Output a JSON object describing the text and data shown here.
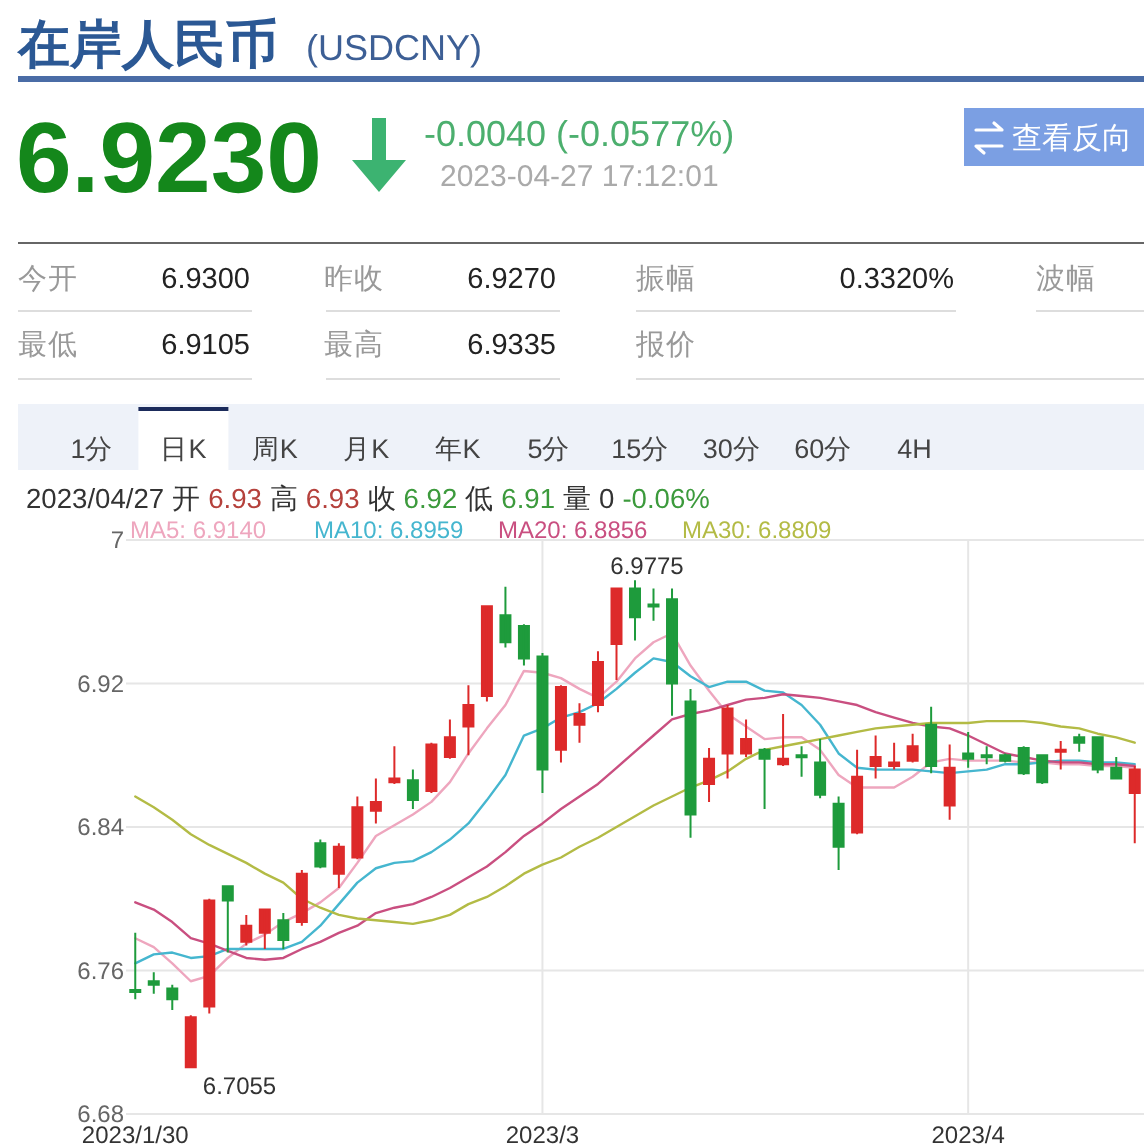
{
  "chart_data": [
    {
      "type": "other",
      "title": "在岸人民币",
      "subtitle": "(USDCNY)",
      "annotations": [
        "6.9230",
        "-0.0040 (-0.0577%)",
        "2023-04-27 17:12:01",
        "查看反向",
        "今开",
        "6.9300",
        "昨收",
        "6.9270",
        "振幅",
        "0.3320%",
        "波幅",
        "最低",
        "6.9105",
        "最高",
        "6.9335",
        "报价",
        "1分",
        "日K",
        "周K",
        "月K",
        "年K",
        "5分",
        "15分",
        "30分",
        "60分",
        "4H",
        "2023/04/27",
        "开",
        "6.93",
        "高",
        "6.93",
        "收",
        "6.92",
        "低",
        "6.91",
        "量",
        "0",
        "-0.06%"
      ]
    },
    {
      "type": "candlestick",
      "categories": [
        "2023/1/30",
        null,
        null,
        null,
        null,
        null,
        null,
        null,
        null,
        null,
        null,
        null,
        null,
        null,
        null,
        null,
        null,
        null,
        null,
        null,
        null,
        null,
        "2023/3",
        null,
        null,
        null,
        null,
        null,
        null,
        null,
        null,
        null,
        null,
        null,
        null,
        null,
        null,
        null,
        null,
        null,
        null,
        null,
        null,
        null,
        null,
        "2023/4",
        null,
        null,
        null,
        null,
        null,
        null,
        null,
        null,
        null
      ],
      "ohlc": [
        [
          6.749,
          6.781,
          6.744,
          6.748
        ],
        [
          6.754,
          6.759,
          6.747,
          6.752
        ],
        [
          6.75,
          6.752,
          6.738,
          6.744
        ],
        [
          6.706,
          6.735,
          6.7055,
          6.734
        ],
        [
          6.74,
          6.8,
          6.736,
          6.799
        ],
        [
          6.807,
          6.807,
          6.77,
          6.799
        ],
        [
          6.776,
          6.791,
          6.774,
          6.785
        ],
        [
          6.781,
          6.794,
          6.772,
          6.794
        ],
        [
          6.788,
          6.792,
          6.772,
          6.777
        ],
        [
          6.787,
          6.816,
          6.785,
          6.814
        ],
        [
          6.831,
          6.833,
          6.817,
          6.818
        ],
        [
          6.814,
          6.831,
          6.806,
          6.829
        ],
        [
          6.823,
          6.857,
          6.822,
          6.851
        ],
        [
          6.849,
          6.867,
          6.842,
          6.854
        ],
        [
          6.865,
          6.885,
          6.864,
          6.867
        ],
        [
          6.866,
          6.872,
          6.85,
          6.855
        ],
        [
          6.86,
          6.887,
          6.859,
          6.886
        ],
        [
          6.879,
          6.9,
          6.878,
          6.89
        ],
        [
          6.896,
          6.919,
          6.88,
          6.908
        ],
        [
          6.913,
          6.963,
          6.91,
          6.963
        ],
        [
          6.958,
          6.974,
          6.94,
          6.943
        ],
        [
          6.952,
          6.953,
          6.93,
          6.934
        ],
        [
          6.935,
          6.937,
          6.859,
          6.872
        ],
        [
          6.883,
          6.919,
          6.876,
          6.918
        ],
        [
          6.897,
          6.909,
          6.887,
          6.903
        ],
        [
          6.908,
          6.938,
          6.904,
          6.932
        ],
        [
          6.942,
          6.973,
          6.922,
          6.973
        ],
        [
          6.973,
          6.9775,
          6.944,
          6.957
        ],
        [
          6.964,
          6.973,
          6.955,
          6.963
        ],
        [
          6.967,
          6.973,
          6.902,
          6.92
        ],
        [
          6.91,
          6.917,
          6.834,
          6.847
        ],
        [
          6.864,
          6.884,
          6.854,
          6.878
        ],
        [
          6.881,
          6.908,
          6.867,
          6.906
        ],
        [
          6.881,
          6.9,
          6.879,
          6.889
        ],
        [
          6.883,
          6.884,
          6.85,
          6.878
        ],
        [
          6.875,
          6.903,
          6.874,
          6.878
        ],
        [
          6.88,
          6.885,
          6.868,
          6.879
        ],
        [
          6.876,
          6.889,
          6.856,
          6.858
        ],
        [
          6.853,
          6.857,
          6.816,
          6.829
        ],
        [
          6.837,
          6.883,
          6.836,
          6.868
        ],
        [
          6.874,
          6.891,
          6.867,
          6.879
        ],
        [
          6.874,
          6.887,
          6.872,
          6.876
        ],
        [
          6.877,
          6.892,
          6.876,
          6.885
        ],
        [
          6.897,
          6.907,
          6.87,
          6.874
        ],
        [
          6.852,
          6.886,
          6.844,
          6.873
        ],
        [
          6.881,
          6.893,
          6.873,
          6.878
        ],
        [
          6.88,
          6.885,
          6.875,
          6.879
        ],
        [
          6.88,
          6.881,
          6.876,
          6.877
        ],
        [
          6.884,
          6.885,
          6.869,
          6.87
        ],
        [
          6.88,
          6.88,
          6.864,
          6.865
        ],
        [
          6.882,
          6.888,
          6.872,
          6.883
        ],
        [
          6.89,
          6.892,
          6.882,
          6.887
        ],
        [
          6.89,
          6.89,
          6.87,
          6.872
        ],
        [
          6.873,
          6.879,
          6.867,
          6.867
        ],
        [
          6.859,
          6.874,
          6.831,
          6.872
        ]
      ],
      "colors": [
        "#1e9b3c",
        "#1e9b3c",
        "#1e9b3c",
        "#dd2a2a",
        "#dd2a2a",
        "#1e9b3c",
        "#dd2a2a",
        "#dd2a2a",
        "#1e9b3c",
        "#dd2a2a",
        "#1e9b3c",
        "#dd2a2a",
        "#dd2a2a",
        "#dd2a2a",
        "#dd2a2a",
        "#1e9b3c",
        "#dd2a2a",
        "#dd2a2a",
        "#dd2a2a",
        "#dd2a2a",
        "#1e9b3c",
        "#1e9b3c",
        "#1e9b3c",
        "#dd2a2a",
        "#dd2a2a",
        "#dd2a2a",
        "#dd2a2a",
        "#1e9b3c",
        "#1e9b3c",
        "#1e9b3c",
        "#1e9b3c",
        "#dd2a2a",
        "#dd2a2a",
        "#dd2a2a",
        "#1e9b3c",
        "#dd2a2a",
        "#1e9b3c",
        "#1e9b3c",
        "#1e9b3c",
        "#dd2a2a",
        "#dd2a2a",
        "#dd2a2a",
        "#dd2a2a",
        "#1e9b3c",
        "#dd2a2a",
        "#1e9b3c",
        "#1e9b3c",
        "#1e9b3c",
        "#1e9b3c",
        "#1e9b3c",
        "#dd2a2a",
        "#1e9b3c",
        "#1e9b3c",
        "#1e9b3c",
        "#dd2a2a"
      ],
      "series": [
        {
          "name": "MA5: 6.9140",
          "type": "line",
          "color": "#eea6be",
          "values": [
            6.778,
            6.773,
            6.764,
            6.754,
            6.757,
            6.767,
            6.775,
            6.78,
            6.787,
            6.792,
            6.798,
            6.806,
            6.82,
            6.835,
            6.841,
            6.847,
            6.854,
            6.865,
            6.881,
            6.895,
            6.908,
            6.927,
            6.926,
            6.923,
            6.917,
            6.912,
            6.921,
            6.934,
            6.943,
            6.948,
            6.93,
            6.916,
            6.903,
            6.896,
            6.889,
            6.89,
            6.89,
            6.883,
            6.869,
            6.862,
            6.862,
            6.862,
            6.868,
            6.876,
            6.878,
            6.877,
            6.877,
            6.877,
            6.876,
            6.876,
            6.875,
            6.875,
            6.874,
            6.874,
            6.873
          ]
        },
        {
          "name": "MA10: 6.8959",
          "type": "line",
          "color": "#45b6cf",
          "values": [
            6.764,
            6.769,
            6.77,
            6.767,
            6.768,
            6.772,
            6.772,
            6.772,
            6.772,
            6.776,
            6.785,
            6.797,
            6.809,
            6.817,
            6.82,
            6.821,
            6.826,
            6.833,
            6.842,
            6.855,
            6.869,
            6.891,
            6.895,
            6.901,
            6.904,
            6.909,
            6.917,
            6.926,
            6.934,
            6.932,
            6.924,
            6.918,
            6.921,
            6.921,
            6.916,
            6.915,
            6.908,
            6.897,
            6.881,
            6.873,
            6.872,
            6.872,
            6.872,
            6.871,
            6.87,
            6.871,
            6.872,
            6.875,
            6.875,
            6.876,
            6.877,
            6.877,
            6.876,
            6.876,
            6.875
          ]
        },
        {
          "name": "MA20: 6.8856",
          "type": "line",
          "color": "#c94f80",
          "values": [
            6.798,
            6.794,
            6.787,
            6.778,
            6.775,
            6.771,
            6.767,
            6.766,
            6.767,
            6.772,
            6.776,
            6.781,
            6.785,
            6.792,
            6.795,
            6.797,
            6.801,
            6.806,
            6.812,
            6.818,
            6.826,
            6.835,
            6.842,
            6.85,
            6.857,
            6.864,
            6.873,
            6.882,
            6.891,
            6.9,
            6.903,
            6.905,
            6.908,
            6.911,
            6.912,
            6.914,
            6.913,
            6.912,
            6.91,
            6.908,
            6.904,
            6.901,
            6.898,
            6.896,
            6.895,
            6.891,
            6.886,
            6.881,
            6.879,
            6.877,
            6.876,
            6.876,
            6.875,
            6.875,
            6.874
          ]
        },
        {
          "name": "MA30: 6.8809",
          "type": "line",
          "color": "#b3bb45",
          "values": [
            6.857,
            6.851,
            6.844,
            6.836,
            6.83,
            6.825,
            6.82,
            6.814,
            6.809,
            6.8,
            6.795,
            6.791,
            6.789,
            6.788,
            6.787,
            6.786,
            6.788,
            6.791,
            6.797,
            6.801,
            6.807,
            6.814,
            6.819,
            6.823,
            6.829,
            6.834,
            6.84,
            6.846,
            6.852,
            6.857,
            6.862,
            6.866,
            6.871,
            6.878,
            6.883,
            6.885,
            6.887,
            6.889,
            6.891,
            6.893,
            6.895,
            6.896,
            6.897,
            6.898,
            6.898,
            6.898,
            6.899,
            6.899,
            6.899,
            6.898,
            6.896,
            6.895,
            6.892,
            6.89,
            6.887
          ]
        }
      ],
      "ylim": [
        6.68,
        7
      ],
      "yticks": [
        6.68,
        6.76,
        6.84,
        6.92,
        7
      ],
      "grid": true,
      "legend": "top",
      "annotations": [
        "6.9775",
        "6.7055"
      ]
    }
  ]
}
